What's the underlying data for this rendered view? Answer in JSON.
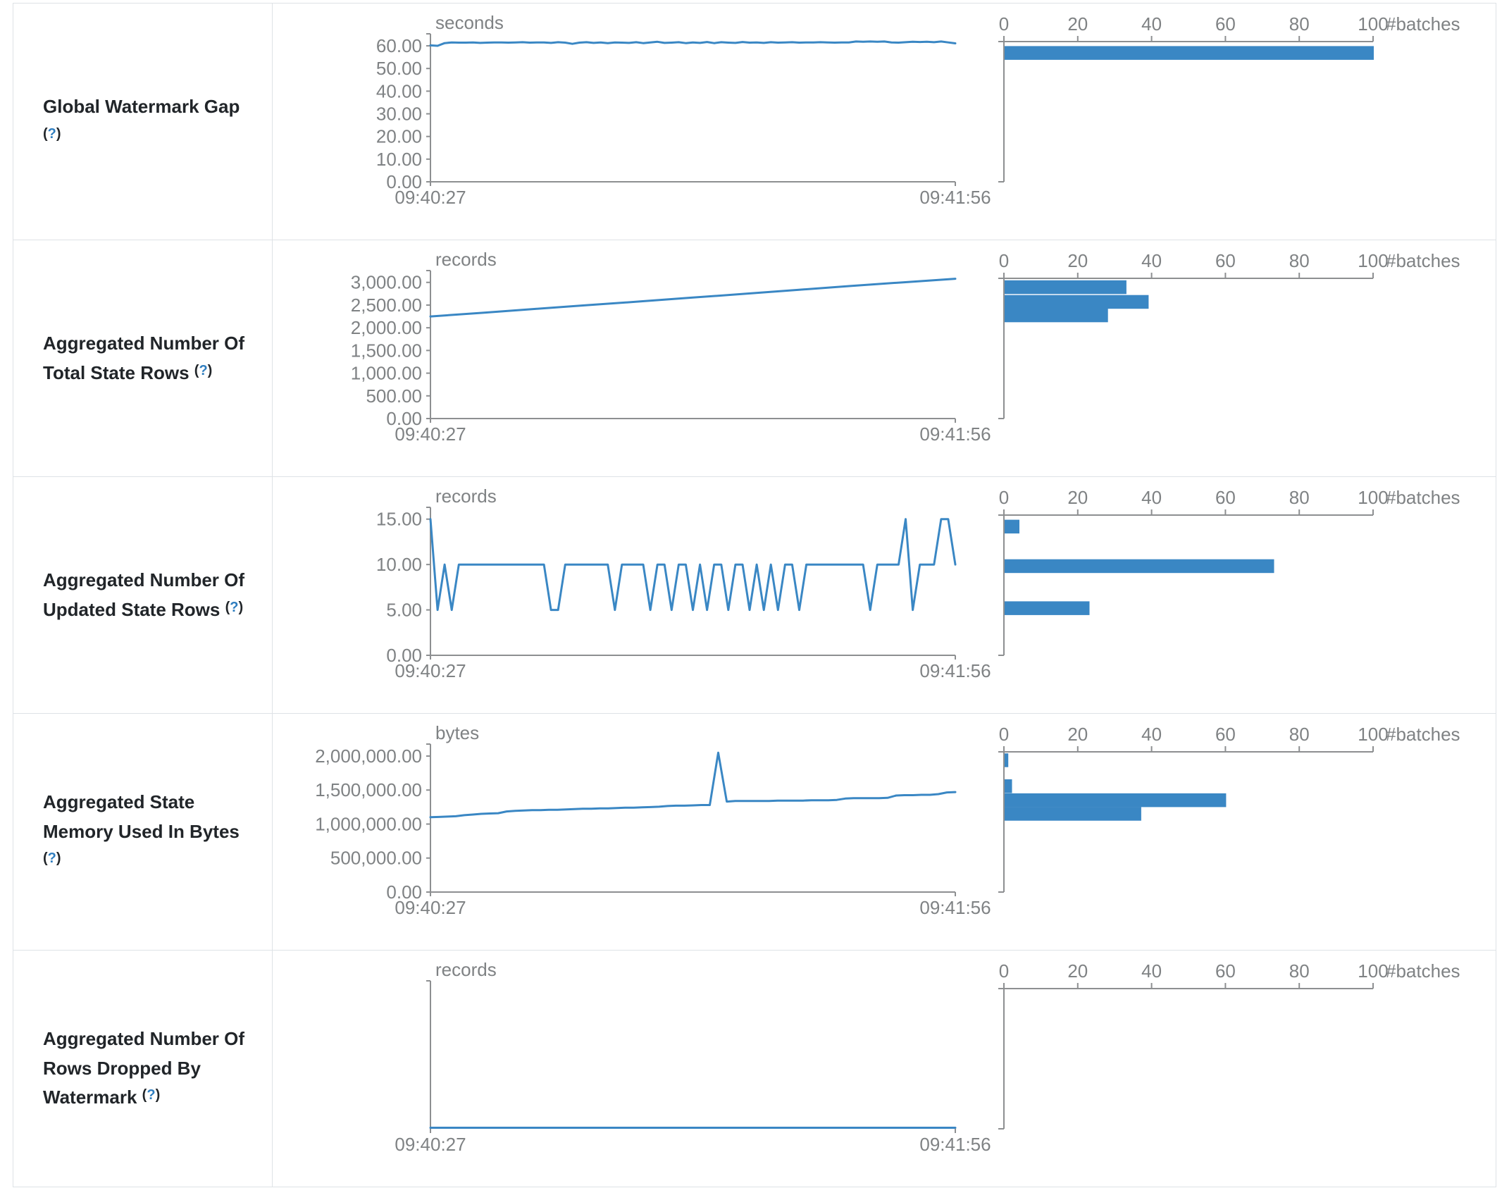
{
  "colors": {
    "chart_blue": "#3a87c4",
    "axis_line_gray": "#8d8f91",
    "axis_text_gray": "#7f8284",
    "title_text": "#212529",
    "help_blue": "#2e7dbf",
    "row_border": "#dee2e6"
  },
  "help": {
    "open": "(",
    "q": "?",
    "close": ")"
  },
  "time_axis": {
    "start": "09:40:27",
    "end": "09:41:56"
  },
  "histogram_axis": {
    "label": "#batches",
    "ticks": [
      0,
      20,
      40,
      60,
      80,
      100
    ],
    "xlim": [
      0,
      100
    ]
  },
  "chart_data": [
    {
      "title": "Global Watermark Gap",
      "line": {
        "type": "line",
        "unit": "seconds",
        "x_start": "09:40:27",
        "x_end": "09:41:56",
        "y_ticks": [
          0,
          10,
          20,
          30,
          40,
          50,
          60
        ],
        "y_top": 65.3,
        "values": [
          60.2,
          60,
          61.2,
          61.5,
          61.4,
          61.4,
          61.5,
          61.3,
          61.4,
          61.5,
          61.5,
          61.4,
          61.5,
          61.6,
          61.4,
          61.5,
          61.5,
          61.3,
          61.6,
          61.4,
          60.9,
          61.4,
          61.6,
          61.3,
          61.5,
          61.2,
          61.5,
          61.4,
          61.3,
          61.6,
          61.2,
          61.5,
          61.8,
          61.3,
          61.4,
          61.6,
          61.2,
          61.5,
          61.3,
          61.7,
          61.2,
          61.6,
          61.4,
          61.3,
          61.7,
          61.4,
          61.5,
          61.3,
          61.6,
          61.4,
          61.5,
          61.6,
          61.4,
          61.5,
          61.5,
          61.6,
          61.5,
          61.4,
          61.5,
          61.5,
          61.9,
          61.8,
          61.9,
          61.8,
          61.9,
          61.5,
          61.4,
          61.6,
          61.8,
          61.7,
          61.8,
          61.6,
          61.9,
          61.5,
          61.1
        ]
      },
      "histogram": {
        "type": "bar",
        "xlabel": "#batches",
        "xlim": [
          0,
          100
        ],
        "x_ticks": [
          0,
          20,
          40,
          60,
          80,
          100
        ],
        "bars": [
          {
            "count": 100,
            "bin_center": 61,
            "top_frac": 0.032
          }
        ]
      }
    },
    {
      "title": "Aggregated Number Of Total State Rows",
      "line": {
        "type": "line",
        "unit": "records",
        "x_start": "09:40:27",
        "x_end": "09:41:56",
        "y_ticks": [
          0,
          500,
          1000,
          1500,
          2000,
          2500,
          3000
        ],
        "y_top": 3260,
        "values": [
          2250,
          2330,
          2415,
          2500,
          2580,
          2665,
          2750,
          2835,
          2920,
          3000,
          3080
        ]
      },
      "histogram": {
        "type": "bar",
        "xlabel": "#batches",
        "xlim": [
          0,
          100
        ],
        "x_ticks": [
          0,
          20,
          40,
          60,
          80,
          100
        ],
        "bars": [
          {
            "count": 33,
            "bin_center": 3000,
            "top_frac": 0.014
          },
          {
            "count": 39,
            "bin_center": 2700,
            "top_frac": 0.119
          },
          {
            "count": 28,
            "bin_center": 2350,
            "top_frac": 0.215
          }
        ]
      }
    },
    {
      "title": "Aggregated Number Of Updated State Rows",
      "line": {
        "type": "line",
        "unit": "records",
        "x_start": "09:40:27",
        "x_end": "09:41:56",
        "y_ticks": [
          0,
          5,
          10,
          15
        ],
        "y_top": 16.3,
        "values": [
          15,
          5,
          10,
          5,
          10,
          10,
          10,
          10,
          10,
          10,
          10,
          10,
          10,
          10,
          10,
          10,
          10,
          5,
          5,
          10,
          10,
          10,
          10,
          10,
          10,
          10,
          5,
          10,
          10,
          10,
          10,
          5,
          10,
          10,
          5,
          10,
          10,
          5,
          10,
          5,
          10,
          10,
          5,
          10,
          10,
          5,
          10,
          5,
          10,
          5,
          10,
          10,
          5,
          10,
          10,
          10,
          10,
          10,
          10,
          10,
          10,
          10,
          5,
          10,
          10,
          10,
          10,
          15,
          5,
          10,
          10,
          10,
          15,
          15,
          10
        ]
      },
      "histogram": {
        "type": "bar",
        "xlabel": "#batches",
        "xlim": [
          0,
          100
        ],
        "x_ticks": [
          0,
          20,
          40,
          60,
          80,
          100
        ],
        "bars": [
          {
            "count": 4,
            "bin_center": 15,
            "top_frac": 0.033
          },
          {
            "count": 73,
            "bin_center": 10,
            "top_frac": 0.315
          },
          {
            "count": 23,
            "bin_center": 5,
            "top_frac": 0.615
          }
        ]
      }
    },
    {
      "title": "Aggregated State Memory Used In Bytes",
      "line": {
        "type": "line",
        "unit": "bytes",
        "x_start": "09:40:27",
        "x_end": "09:41:56",
        "y_ticks": [
          0,
          500000,
          1000000,
          1500000,
          2000000
        ],
        "y_top": 2176000,
        "values": [
          1100000,
          1105000,
          1110000,
          1115000,
          1130000,
          1140000,
          1150000,
          1155000,
          1160000,
          1185000,
          1195000,
          1200000,
          1205000,
          1205000,
          1210000,
          1210000,
          1215000,
          1220000,
          1225000,
          1225000,
          1230000,
          1230000,
          1235000,
          1240000,
          1240000,
          1245000,
          1250000,
          1255000,
          1265000,
          1270000,
          1270000,
          1275000,
          1280000,
          1280000,
          2050000,
          1330000,
          1340000,
          1340000,
          1340000,
          1340000,
          1340000,
          1345000,
          1345000,
          1345000,
          1345000,
          1350000,
          1350000,
          1350000,
          1355000,
          1375000,
          1380000,
          1380000,
          1380000,
          1380000,
          1385000,
          1420000,
          1425000,
          1425000,
          1430000,
          1430000,
          1440000,
          1465000,
          1470000
        ]
      },
      "histogram": {
        "type": "bar",
        "xlabel": "#batches",
        "xlim": [
          0,
          100
        ],
        "x_ticks": [
          0,
          20,
          40,
          60,
          80,
          100
        ],
        "bars": [
          {
            "count": 1,
            "bin_center": 2050000,
            "top_frac": 0.011
          },
          {
            "count": 2,
            "bin_center": 1470000,
            "top_frac": 0.196
          },
          {
            "count": 60,
            "bin_center": 1350000,
            "top_frac": 0.296
          },
          {
            "count": 37,
            "bin_center": 1200000,
            "top_frac": 0.393
          }
        ]
      }
    },
    {
      "title": "Aggregated Number Of Rows Dropped By Watermark",
      "line": {
        "type": "line",
        "unit": "records",
        "x_start": "09:40:27",
        "x_end": "09:41:56",
        "y_ticks": [],
        "y_top": 1,
        "values": [
          0,
          0,
          0,
          0,
          0,
          0,
          0,
          0,
          0,
          0
        ]
      },
      "histogram": {
        "type": "bar",
        "xlabel": "#batches",
        "xlim": [
          0,
          100
        ],
        "x_ticks": [
          0,
          20,
          40,
          60,
          80,
          100
        ],
        "bars": []
      }
    }
  ]
}
